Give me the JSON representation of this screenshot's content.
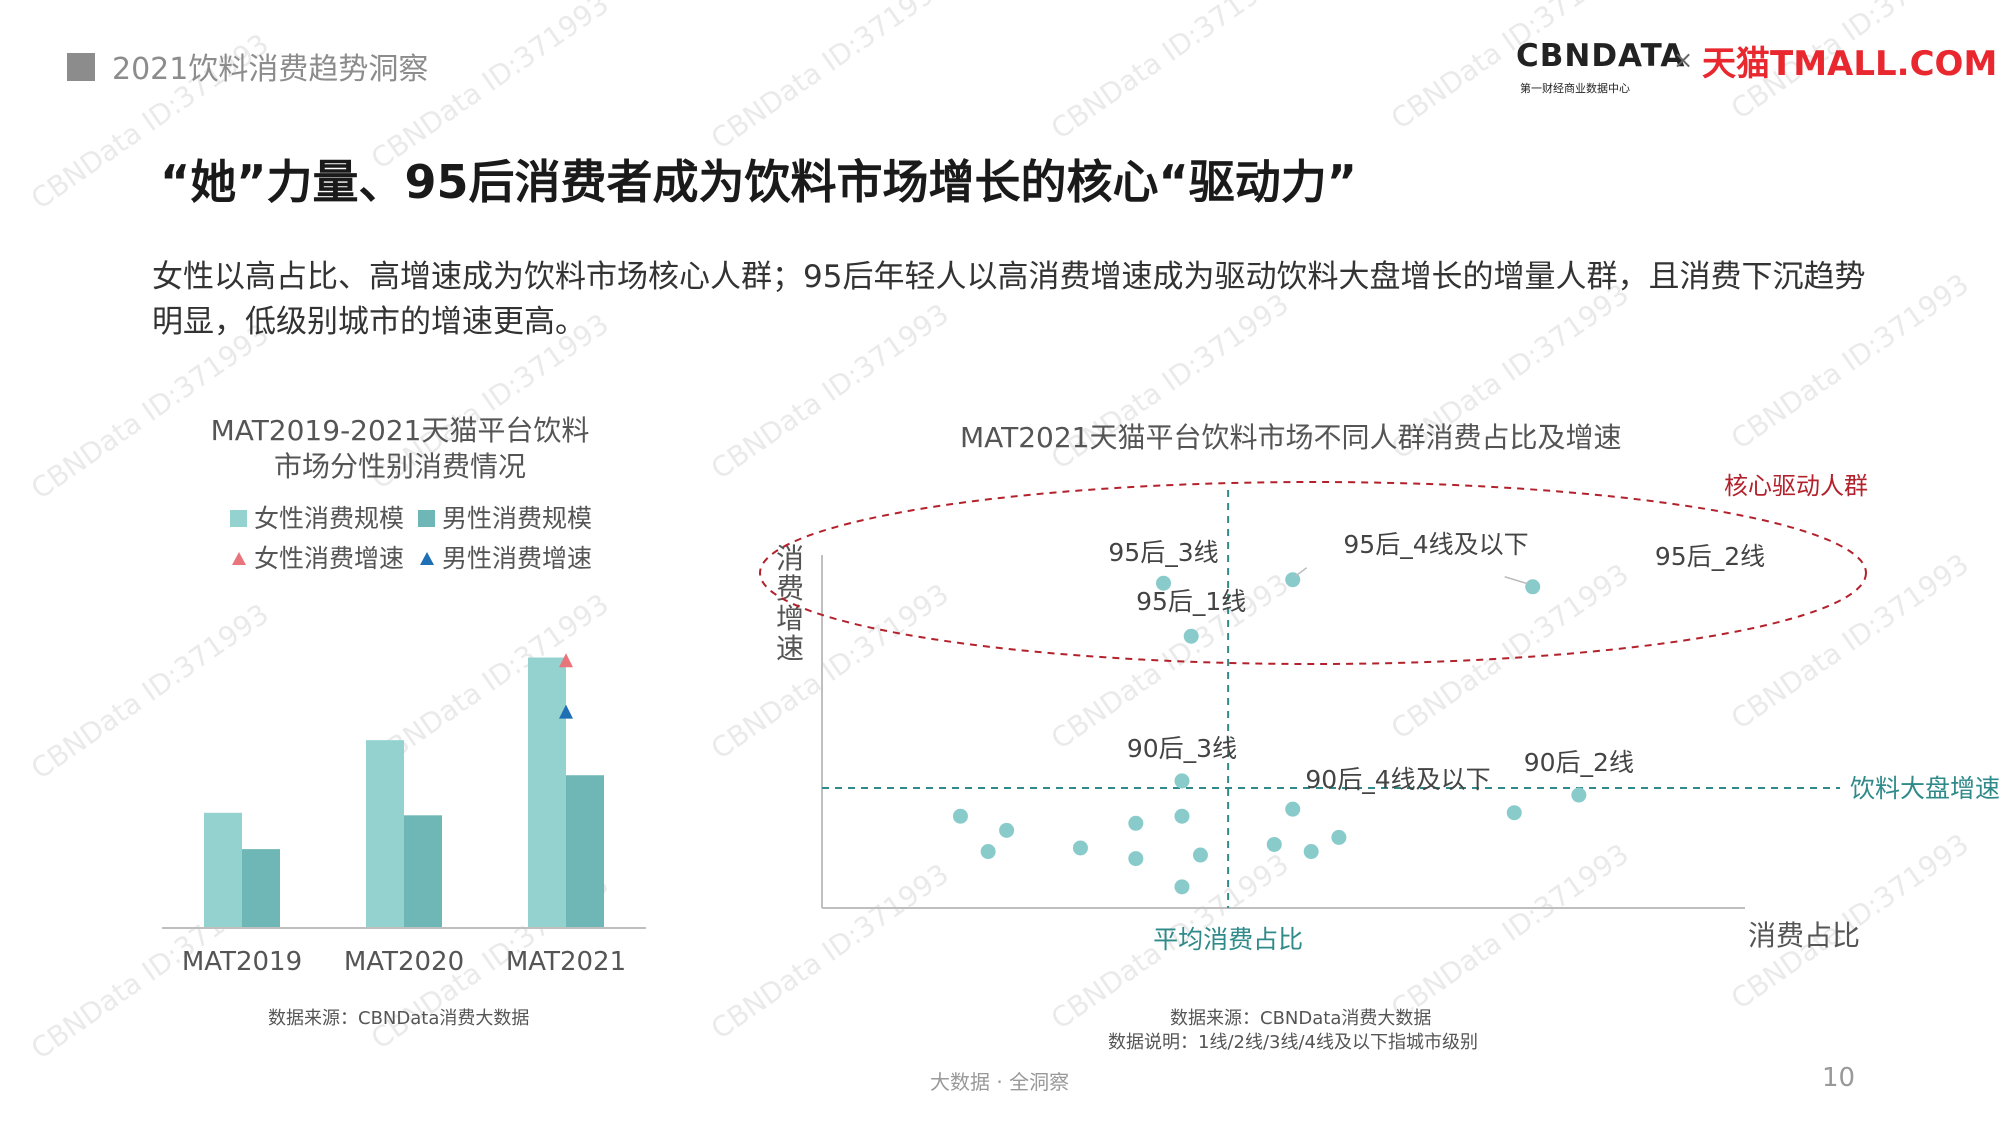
{
  "header": {
    "text": "2021饮料消费趋势洞察"
  },
  "logo": {
    "cbn": "CBNDATA",
    "cbn_sub": "第一财经商业数据中心",
    "x": "×",
    "tmall": "天猫TMALL.COM"
  },
  "title": "“她”力量、95后消费者成为饮料市场增长的核心“驱动力”",
  "subtitle": "女性以高占比、高增速成为饮料市场核心人群；95后年轻人以高消费增速成为驱动饮料大盘增长的增量人群，且消费下沉趋势明显，低级别城市的增速更高。",
  "footer": "大数据 · 全洞察",
  "page_number": "10",
  "watermark": "CBNData ID:371993",
  "colors": {
    "female_bar": "#94d2d0",
    "male_bar": "#6fb7b6",
    "female_growth": "#e8747c",
    "male_growth": "#1f6fb5",
    "highlight": "#b3222c",
    "teal_text": "#2f8a89",
    "dot": "#89cbcb"
  },
  "chart_data": [
    {
      "type": "bar",
      "title": "MAT2019-2021天猫平台饮料\n市场分性别消费情况",
      "categories": [
        "MAT2019",
        "MAT2020",
        "MAT2021"
      ],
      "series": [
        {
          "name": "女性消费规模",
          "values": [
            92,
            150,
            216
          ]
        },
        {
          "name": "男性消费规模",
          "values": [
            63,
            90,
            122
          ]
        }
      ],
      "growth_markers": [
        {
          "name": "女性消费增速",
          "category": "MAT2021",
          "value": 213,
          "marker": "triangle"
        },
        {
          "name": "男性消费增速",
          "category": "MAT2021",
          "value": 172,
          "marker": "triangle"
        }
      ],
      "ylim": [
        0,
        230
      ],
      "legend_position": "top",
      "axis_values_shown": false,
      "source": "数据来源：CBNData消费大数据"
    },
    {
      "type": "scatter",
      "title": "MAT2021天猫平台饮料市场不同人群消费占比及增速",
      "xlabel": "消费占比",
      "ylabel": "消费增速",
      "xlim": [
        0,
        100
      ],
      "ylim": [
        0,
        100
      ],
      "reference_lines": [
        {
          "axis": "x",
          "value": 44,
          "label": "平均消费占比"
        },
        {
          "axis": "y",
          "value": 34,
          "label": "饮料大盘增速"
        }
      ],
      "highlight_group": {
        "label": "核心驱动人群"
      },
      "points": [
        {
          "x": 37,
          "y": 92,
          "label": "95后_3线"
        },
        {
          "x": 51,
          "y": 93,
          "label": "95后_4线及以下"
        },
        {
          "x": 40,
          "y": 77,
          "label": "95后_1线"
        },
        {
          "x": 77,
          "y": 91,
          "label": "95后_2线"
        },
        {
          "x": 39,
          "y": 36,
          "label": "90后_3线"
        },
        {
          "x": 82,
          "y": 32,
          "label": "90后_2线"
        },
        {
          "x": 51,
          "y": 28,
          "label": "90后_4线及以下"
        },
        {
          "x": 15,
          "y": 26
        },
        {
          "x": 20,
          "y": 22
        },
        {
          "x": 18,
          "y": 16
        },
        {
          "x": 28,
          "y": 17
        },
        {
          "x": 34,
          "y": 24
        },
        {
          "x": 34,
          "y": 14
        },
        {
          "x": 39,
          "y": 26
        },
        {
          "x": 41,
          "y": 15
        },
        {
          "x": 39,
          "y": 6
        },
        {
          "x": 49,
          "y": 18
        },
        {
          "x": 53,
          "y": 16
        },
        {
          "x": 56,
          "y": 20
        },
        {
          "x": 75,
          "y": 27
        }
      ],
      "source": "数据来源：CBNData消费大数据",
      "note": "数据说明：1线/2线/3线/4线及以下指城市级别"
    }
  ]
}
